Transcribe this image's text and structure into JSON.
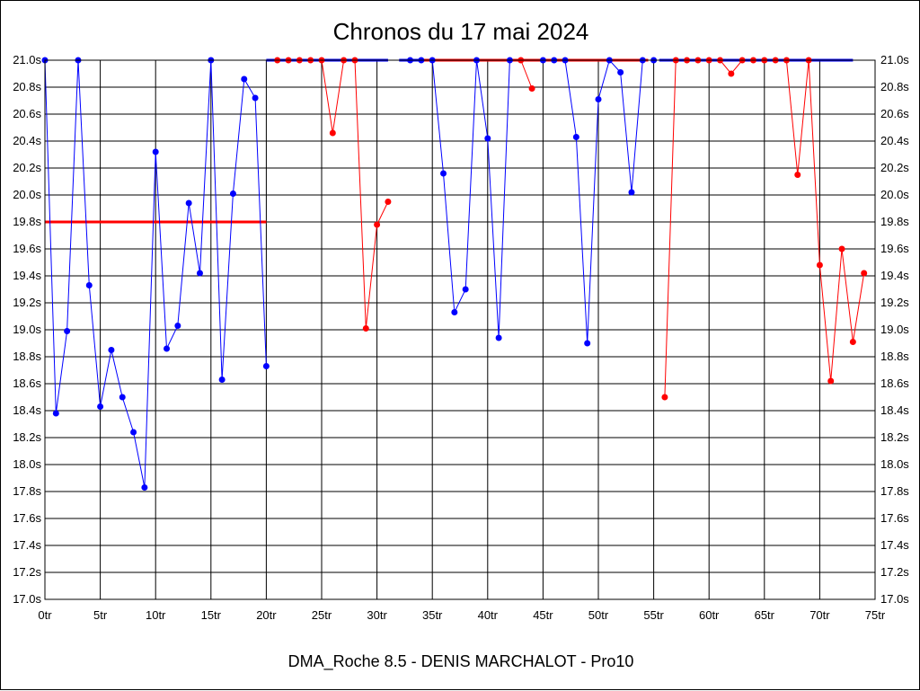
{
  "chart_data": {
    "type": "line",
    "title": "Chronos du 17 mai 2024",
    "subtitle": "DMA_Roche 8.5 - DENIS MARCHALOT - Pro10",
    "xlim": [
      0,
      75
    ],
    "ylim": [
      17.0,
      21.0
    ],
    "x_ticks": [
      {
        "value": 0,
        "label": "0tr"
      },
      {
        "value": 5,
        "label": "5tr"
      },
      {
        "value": 10,
        "label": "10tr"
      },
      {
        "value": 15,
        "label": "15tr"
      },
      {
        "value": 20,
        "label": "20tr"
      },
      {
        "value": 25,
        "label": "25tr"
      },
      {
        "value": 30,
        "label": "30tr"
      },
      {
        "value": 35,
        "label": "35tr"
      },
      {
        "value": 40,
        "label": "40tr"
      },
      {
        "value": 45,
        "label": "45tr"
      },
      {
        "value": 50,
        "label": "50tr"
      },
      {
        "value": 55,
        "label": "55tr"
      },
      {
        "value": 60,
        "label": "60tr"
      },
      {
        "value": 65,
        "label": "65tr"
      },
      {
        "value": 70,
        "label": "70tr"
      },
      {
        "value": 75,
        "label": "75tr"
      }
    ],
    "y_ticks": [
      {
        "value": 17.0,
        "label": "17.0s"
      },
      {
        "value": 17.2,
        "label": "17.2s"
      },
      {
        "value": 17.4,
        "label": "17.4s"
      },
      {
        "value": 17.6,
        "label": "17.6s"
      },
      {
        "value": 17.8,
        "label": "17.8s"
      },
      {
        "value": 18.0,
        "label": "18.0s"
      },
      {
        "value": 18.2,
        "label": "18.2s"
      },
      {
        "value": 18.4,
        "label": "18.4s"
      },
      {
        "value": 18.6,
        "label": "18.6s"
      },
      {
        "value": 18.8,
        "label": "18.8s"
      },
      {
        "value": 19.0,
        "label": "19.0s"
      },
      {
        "value": 19.2,
        "label": "19.2s"
      },
      {
        "value": 19.4,
        "label": "19.4s"
      },
      {
        "value": 19.6,
        "label": "19.6s"
      },
      {
        "value": 19.8,
        "label": "19.8s"
      },
      {
        "value": 20.0,
        "label": "20.0s"
      },
      {
        "value": 20.2,
        "label": "20.2s"
      },
      {
        "value": 20.4,
        "label": "20.4s"
      },
      {
        "value": 20.6,
        "label": "20.6s"
      },
      {
        "value": 20.8,
        "label": "20.8s"
      },
      {
        "value": 21.0,
        "label": "21.0s"
      }
    ],
    "grid": true,
    "colors": {
      "blue": "#0000ff",
      "red": "#ff0000",
      "grid": "#000000"
    },
    "segments": [
      {
        "color": "blue",
        "points": [
          [
            0,
            21.0
          ],
          [
            1,
            18.38
          ],
          [
            2,
            18.99
          ],
          [
            3,
            21.0
          ],
          [
            4,
            19.33
          ],
          [
            5,
            18.43
          ],
          [
            6,
            18.85
          ],
          [
            7,
            18.5
          ],
          [
            8,
            18.24
          ],
          [
            9,
            17.83
          ],
          [
            10,
            20.32
          ],
          [
            11,
            18.86
          ],
          [
            12,
            19.03
          ],
          [
            13,
            19.94
          ],
          [
            14,
            19.42
          ],
          [
            15,
            21.0
          ],
          [
            16,
            18.63
          ],
          [
            17,
            20.01
          ],
          [
            18,
            20.86
          ],
          [
            19,
            20.72
          ],
          [
            20,
            18.73
          ]
        ]
      },
      {
        "color": "red",
        "points": [
          [
            21,
            21.0
          ],
          [
            22,
            21.0
          ],
          [
            23,
            21.0
          ],
          [
            24,
            21.0
          ],
          [
            25,
            21.0
          ],
          [
            26,
            20.46
          ],
          [
            27,
            21.0
          ],
          [
            28,
            21.0
          ],
          [
            29,
            19.01
          ],
          [
            30,
            19.78
          ],
          [
            31,
            19.95
          ]
        ]
      },
      {
        "color": "blue",
        "points": [
          [
            33,
            21.0
          ],
          [
            34,
            21.0
          ],
          [
            35,
            21.0
          ],
          [
            36,
            20.16
          ],
          [
            37,
            19.13
          ],
          [
            38,
            19.3
          ],
          [
            39,
            21.0
          ],
          [
            40,
            20.42
          ],
          [
            41,
            18.94
          ],
          [
            42,
            21.0
          ]
        ]
      },
      {
        "color": "red",
        "points": [
          [
            43,
            21.0
          ],
          [
            44,
            20.79
          ]
        ]
      },
      {
        "color": "blue",
        "points": [
          [
            45,
            21.0
          ],
          [
            46,
            21.0
          ],
          [
            47,
            21.0
          ],
          [
            48,
            20.43
          ],
          [
            49,
            18.9
          ],
          [
            50,
            20.71
          ],
          [
            51,
            21.0
          ],
          [
            52,
            20.91
          ],
          [
            53,
            20.02
          ],
          [
            54,
            21.0
          ],
          [
            55,
            21.0
          ]
        ]
      },
      {
        "color": "red",
        "points": [
          [
            56,
            18.5
          ],
          [
            57,
            21.0
          ],
          [
            58,
            21.0
          ],
          [
            59,
            21.0
          ],
          [
            60,
            21.0
          ],
          [
            61,
            21.0
          ],
          [
            62,
            20.9
          ],
          [
            63,
            21.0
          ],
          [
            64,
            21.0
          ],
          [
            65,
            21.0
          ],
          [
            66,
            21.0
          ],
          [
            67,
            21.0
          ],
          [
            68,
            20.15
          ],
          [
            69,
            21.0
          ],
          [
            70,
            19.48
          ],
          [
            71,
            18.62
          ],
          [
            72,
            19.6
          ],
          [
            73,
            18.91
          ],
          [
            74,
            19.42
          ]
        ]
      }
    ],
    "reference_lines": [
      {
        "color": "red",
        "y": 19.8,
        "x_range": [
          0,
          20
        ]
      },
      {
        "color": "blue",
        "y": 21.0,
        "x_range": [
          20,
          31
        ]
      },
      {
        "color": "blue",
        "y": 21.0,
        "x_range": [
          32,
          43
        ]
      },
      {
        "color": "red",
        "y": 21.0,
        "x_range": [
          34,
          54.5
        ]
      },
      {
        "color": "blue",
        "y": 21.0,
        "x_range": [
          55.5,
          73
        ]
      }
    ]
  }
}
